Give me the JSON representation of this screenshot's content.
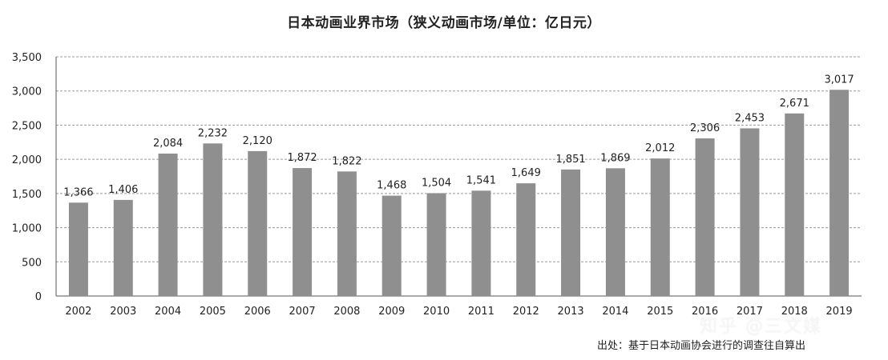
{
  "chart_data": {
    "type": "bar",
    "title": "日本动画业界市场（狭义动画市场/单位：亿日元）",
    "categories": [
      "2002",
      "2003",
      "2004",
      "2005",
      "2006",
      "2007",
      "2008",
      "2009",
      "2010",
      "2011",
      "2012",
      "2013",
      "2014",
      "2015",
      "2016",
      "2017",
      "2018",
      "2019"
    ],
    "values": [
      1366,
      1406,
      2084,
      2232,
      2120,
      1872,
      1822,
      1468,
      1504,
      1541,
      1649,
      1851,
      1869,
      2012,
      2306,
      2453,
      2671,
      3017
    ],
    "value_labels": [
      "1,366",
      "1,406",
      "2,084",
      "2,232",
      "2,120",
      "1,872",
      "1,822",
      "1,468",
      "1,504",
      "1,541",
      "1,649",
      "1,851",
      "1,869",
      "2,012",
      "2,306",
      "2,453",
      "2,671",
      "3,017"
    ],
    "yticks": [
      0,
      500,
      1000,
      1500,
      2000,
      2500,
      3000,
      3500
    ],
    "ytick_labels": [
      "0",
      "500",
      "1,000",
      "1,500",
      "2,000",
      "2,500",
      "3,000",
      "3,500"
    ],
    "ylim": [
      0,
      3500
    ],
    "xlabel": "",
    "ylabel": "",
    "grid": true,
    "bar_color": "#8f8f8f"
  },
  "source_note": "出处：基于日本动画协会进行的调查往自算出",
  "watermark": "知乎 @三文媒"
}
